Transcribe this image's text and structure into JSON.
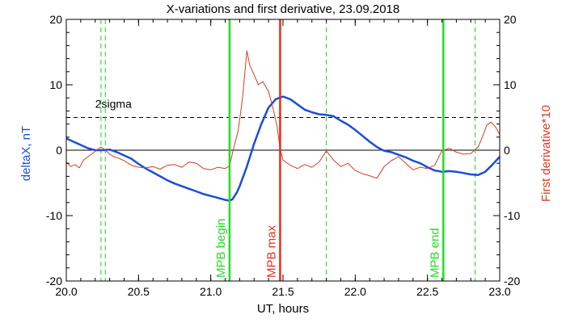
{
  "chart_data": {
    "type": "line",
    "title": "X-variations and first derivative, 23.09.2018",
    "xlabel": "UT, hours",
    "ylabel_left": "deltaX, nT",
    "ylabel_right": "First derivative*10",
    "xlim": [
      20.0,
      23.0
    ],
    "ylim_left": [
      -20,
      20
    ],
    "ylim_right": [
      -20,
      20
    ],
    "x_ticks": [
      "20.0",
      "20.5",
      "21.0",
      "21.5",
      "22.0",
      "22.5",
      "23.0"
    ],
    "y_ticks_left": [
      "-20",
      "-10",
      "0",
      "10",
      "20"
    ],
    "y_ticks_right": [
      "-20",
      "-10",
      "0",
      "10",
      "20"
    ],
    "threshold": {
      "label": "2sigma",
      "value": 5
    },
    "zero_line": 0,
    "colors": {
      "deltaX": "#1a4fd6",
      "derivative": "#d93b24",
      "mpb_begin": "#22dd22",
      "mpb_max": "#ee2a1a",
      "mpb_end": "#22dd22",
      "dashed_markers": "#22cc22"
    },
    "vertical_markers": [
      {
        "x": 21.13,
        "label": "MPB begin",
        "color": "#22dd22",
        "style": "solid"
      },
      {
        "x": 21.48,
        "label": "MPB max",
        "color": "#ee2a1a",
        "style": "solid"
      },
      {
        "x": 22.61,
        "label": "MPB end",
        "color": "#22dd22",
        "style": "solid"
      }
    ],
    "dashed_verticals": [
      20.24,
      20.27,
      21.8,
      22.83
    ],
    "series": [
      {
        "axis": "left",
        "color": "#1a4fd6",
        "x": [
          20.0,
          20.05,
          20.1,
          20.15,
          20.2,
          20.25,
          20.3,
          20.35,
          20.4,
          20.45,
          20.5,
          20.55,
          20.6,
          20.65,
          20.7,
          20.75,
          20.8,
          20.85,
          20.9,
          20.95,
          21.0,
          21.05,
          21.1,
          21.13,
          21.15,
          21.18,
          21.2,
          21.25,
          21.3,
          21.35,
          21.4,
          21.45,
          21.5,
          21.55,
          21.6,
          21.65,
          21.7,
          21.75,
          21.8,
          21.85,
          21.9,
          21.95,
          22.0,
          22.05,
          22.1,
          22.15,
          22.2,
          22.25,
          22.3,
          22.35,
          22.4,
          22.45,
          22.5,
          22.55,
          22.6,
          22.65,
          22.7,
          22.75,
          22.8,
          22.85,
          22.9,
          22.95,
          23.0
        ],
        "values": [
          1.8,
          1.3,
          0.8,
          0.3,
          0.0,
          0.0,
          0.1,
          -0.3,
          -0.8,
          -1.3,
          -2.1,
          -2.8,
          -3.4,
          -4.0,
          -4.6,
          -5.1,
          -5.5,
          -5.9,
          -6.3,
          -6.7,
          -7.0,
          -7.3,
          -7.6,
          -7.7,
          -7.5,
          -6.5,
          -5.5,
          -2.5,
          1.0,
          4.0,
          6.5,
          7.8,
          8.2,
          7.8,
          7.0,
          6.2,
          5.8,
          5.5,
          5.4,
          5.2,
          4.5,
          3.9,
          3.1,
          2.2,
          1.3,
          0.5,
          -0.1,
          -0.3,
          -0.7,
          -1.1,
          -1.6,
          -2.0,
          -2.6,
          -3.1,
          -3.3,
          -3.2,
          -3.3,
          -3.5,
          -3.7,
          -3.8,
          -3.3,
          -2.2,
          -1.0
        ]
      },
      {
        "axis": "right",
        "color": "#d93b24",
        "x": [
          20.0,
          20.03,
          20.06,
          20.09,
          20.12,
          20.15,
          20.18,
          20.21,
          20.24,
          20.27,
          20.3,
          20.33,
          20.36,
          20.4,
          20.45,
          20.5,
          20.55,
          20.6,
          20.65,
          20.7,
          20.75,
          20.8,
          20.85,
          20.9,
          20.95,
          21.0,
          21.05,
          21.1,
          21.13,
          21.16,
          21.19,
          21.22,
          21.25,
          21.27,
          21.3,
          21.33,
          21.36,
          21.4,
          21.43,
          21.46,
          21.48,
          21.5,
          21.55,
          21.6,
          21.65,
          21.7,
          21.75,
          21.8,
          21.85,
          21.9,
          21.95,
          22.0,
          22.05,
          22.1,
          22.15,
          22.2,
          22.25,
          22.3,
          22.35,
          22.4,
          22.45,
          22.5,
          22.55,
          22.6,
          22.65,
          22.7,
          22.75,
          22.8,
          22.85,
          22.88,
          22.91,
          22.94,
          22.97,
          23.0
        ],
        "values": [
          -1.8,
          -2.5,
          -2.2,
          -2.7,
          -1.5,
          -1.0,
          -0.5,
          0.0,
          0.5,
          0.0,
          -0.6,
          -1.0,
          -1.2,
          -1.6,
          -2.3,
          -2.6,
          -2.7,
          -2.5,
          -2.9,
          -2.3,
          -2.2,
          -2.6,
          -1.8,
          -2.0,
          -2.8,
          -3.0,
          -2.6,
          -2.8,
          -2.4,
          0.5,
          3.0,
          8.0,
          15.2,
          13.0,
          11.5,
          10.0,
          10.5,
          9.0,
          6.5,
          3.5,
          0.2,
          -1.5,
          -2.3,
          -2.8,
          -2.2,
          -2.6,
          -1.8,
          -0.1,
          -1.5,
          -2.5,
          -2.0,
          -3.1,
          -3.6,
          -3.9,
          -4.3,
          -2.5,
          -1.6,
          -1.0,
          -2.0,
          -3.0,
          -2.6,
          -2.8,
          -2.3,
          -0.1,
          0.3,
          -0.3,
          -0.6,
          -0.5,
          0.5,
          2.0,
          3.8,
          4.3,
          3.6,
          2.4
        ]
      }
    ]
  }
}
